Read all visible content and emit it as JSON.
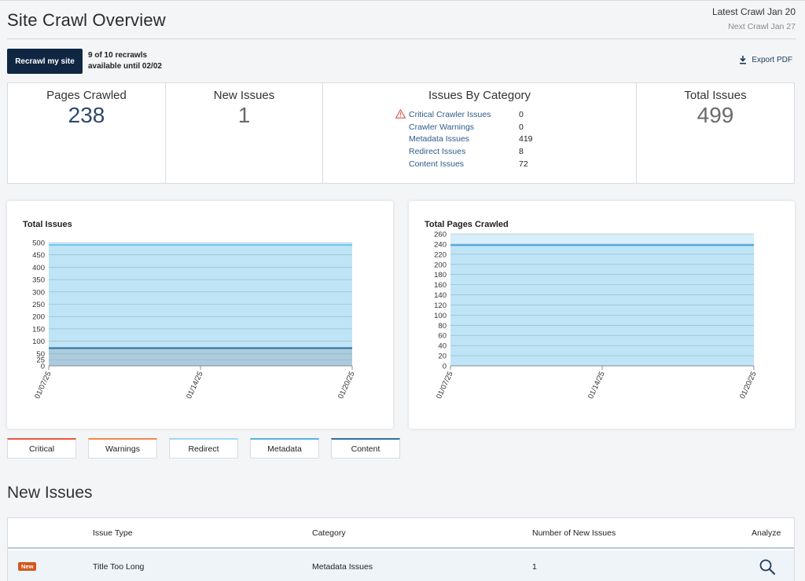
{
  "header": {
    "title": "Site Crawl Overview",
    "latest_crawl": "Latest Crawl Jan 20",
    "next_crawl": "Next Crawl Jan 27"
  },
  "toolbar": {
    "recrawl_label": "Recrawl my site",
    "recrawl_note_line1": "9 of 10 recrawls",
    "recrawl_note_line2": "available until 02/02",
    "export_label": "Export PDF"
  },
  "stats": {
    "pages_crawled": {
      "label": "Pages Crawled",
      "value": "238"
    },
    "new_issues": {
      "label": "New Issues",
      "value": "1"
    },
    "issues_by_category": {
      "label": "Issues By Category",
      "rows": [
        {
          "name": "Critical Crawler Issues",
          "value": "0",
          "icon": "warning-icon"
        },
        {
          "name": "Crawler Warnings",
          "value": "0"
        },
        {
          "name": "Metadata Issues",
          "value": "419"
        },
        {
          "name": "Redirect Issues",
          "value": "8"
        },
        {
          "name": "Content Issues",
          "value": "72"
        }
      ]
    },
    "total_issues": {
      "label": "Total Issues",
      "value": "499"
    }
  },
  "chart_data": [
    {
      "type": "area",
      "title": "Total Issues",
      "x": [
        "01/07/25",
        "01/14/25",
        "01/20/25"
      ],
      "ylim": [
        0,
        500
      ],
      "yticks": [
        0,
        25,
        50,
        100,
        150,
        200,
        250,
        300,
        350,
        400,
        450,
        500
      ],
      "series": [
        {
          "values": [
            72,
            72,
            72
          ],
          "color": "#2f6f9f"
        },
        {
          "values": [
            491,
            491,
            491
          ],
          "color": "#6cc4ea"
        }
      ],
      "grid": true
    },
    {
      "type": "area",
      "title": "Total Pages Crawled",
      "x": [
        "01/07/25",
        "01/14/25",
        "01/20/25"
      ],
      "ylim": [
        0,
        260
      ],
      "yticks": [
        0,
        20,
        40,
        60,
        80,
        100,
        120,
        140,
        160,
        180,
        200,
        220,
        240,
        260
      ],
      "series": [
        {
          "values": [
            238,
            238,
            238
          ],
          "color": "#4aa3d8"
        }
      ],
      "grid": true
    }
  ],
  "legend": [
    {
      "label": "Critical",
      "color": "#e8573c"
    },
    {
      "label": "Warnings",
      "color": "#f08a4b"
    },
    {
      "label": "Redirect",
      "color": "#9fd8f2"
    },
    {
      "label": "Metadata",
      "color": "#54b4e0"
    },
    {
      "label": "Content",
      "color": "#2f6f9f"
    }
  ],
  "new_issues_section": {
    "title": "New Issues",
    "columns": {
      "issue_type": "Issue Type",
      "category": "Category",
      "count": "Number of New Issues",
      "analyze": "Analyze"
    },
    "rows": [
      {
        "badge": "New",
        "issue_type": "Title Too Long",
        "category": "Metadata Issues",
        "count": "1"
      }
    ]
  }
}
